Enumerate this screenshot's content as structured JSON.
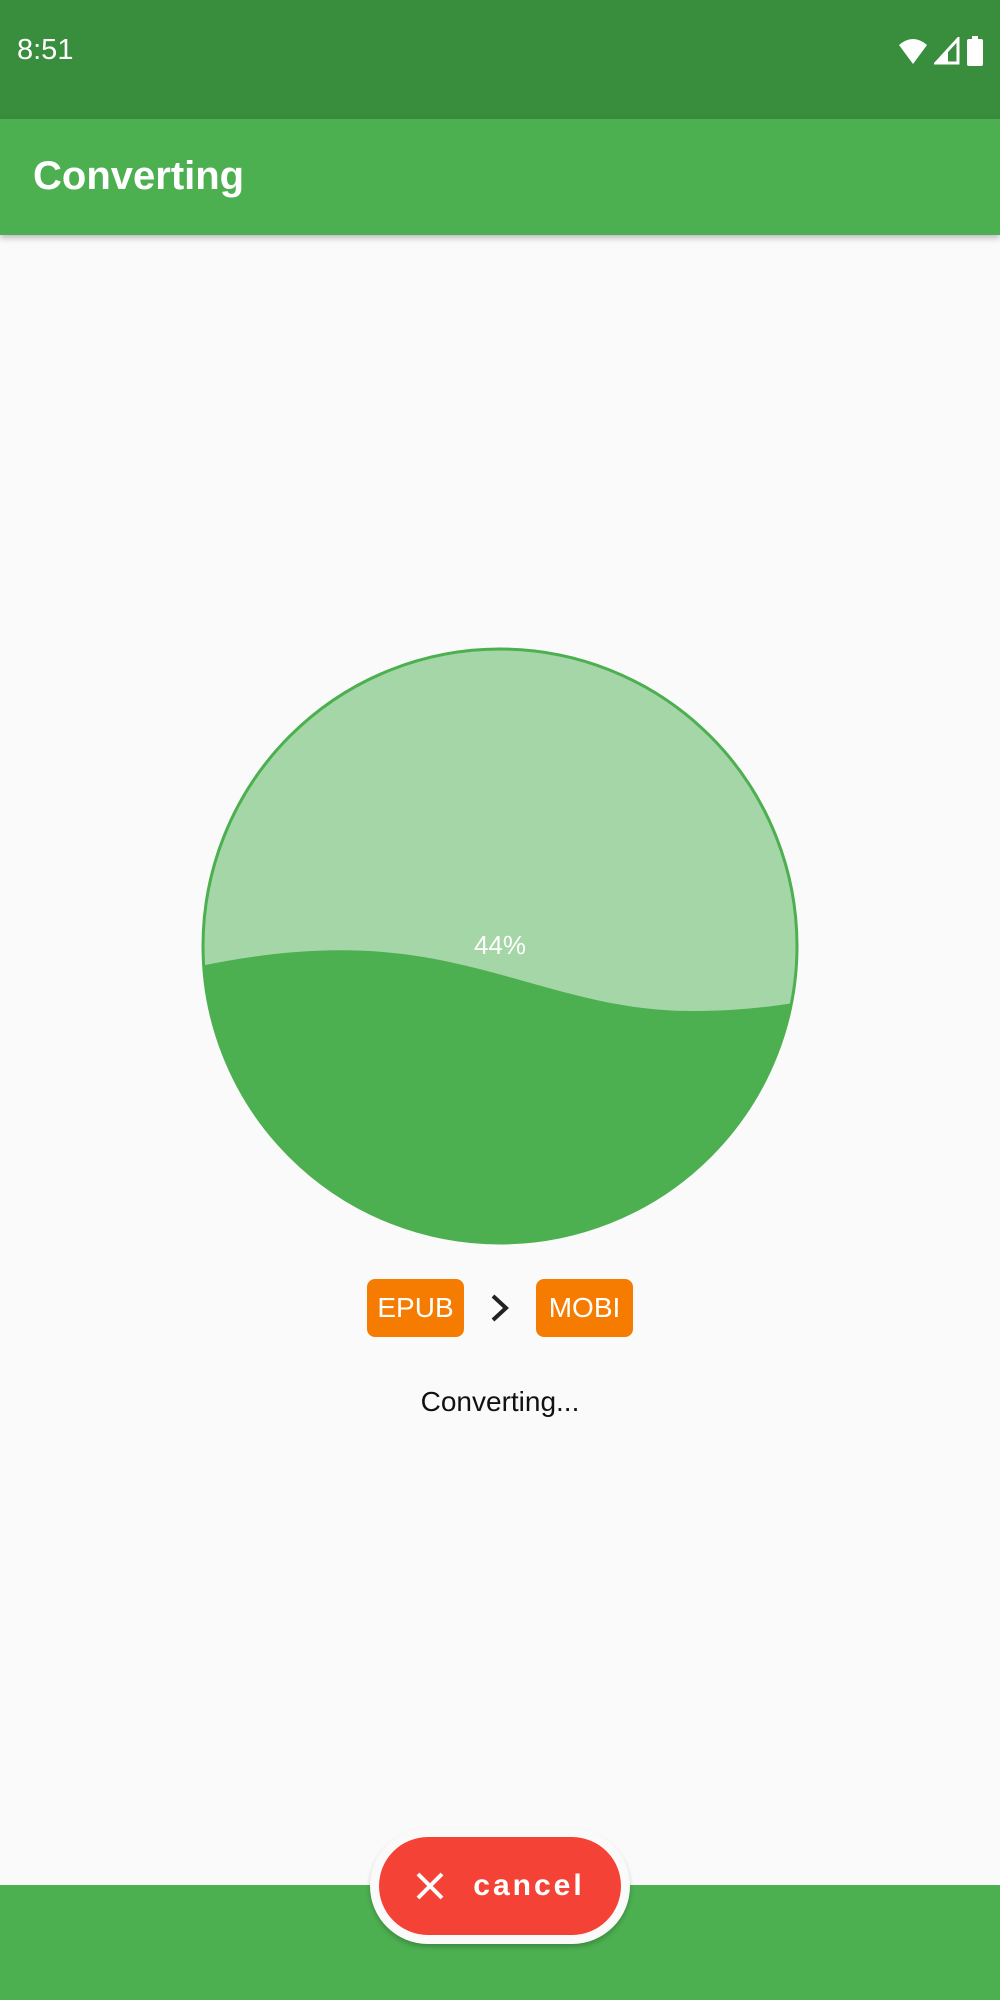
{
  "status_bar": {
    "time": "8:51",
    "icons": [
      "wifi-icon",
      "signal-icon",
      "battery-icon"
    ]
  },
  "app_bar": {
    "title": "Converting"
  },
  "progress": {
    "percent_label": "44%",
    "value": 44,
    "fill_color": "#4caf50",
    "light_color": "#a5d6a7"
  },
  "conversion": {
    "from": "EPUB",
    "to": "MOBI",
    "arrow_icon": "chevron-right-icon",
    "chip_color": "#f57c00"
  },
  "status_message": "Converting...",
  "cancel_button": {
    "label": "cancel",
    "icon": "close-icon",
    "color": "#f44336"
  }
}
